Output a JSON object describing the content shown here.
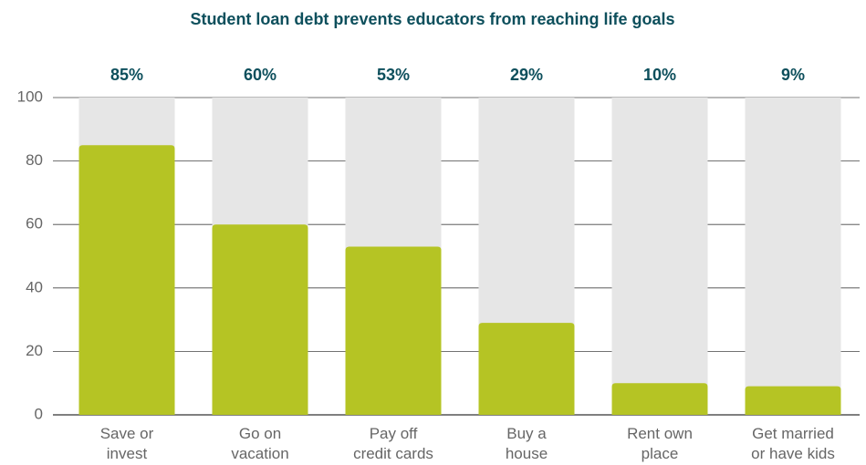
{
  "chart_data": {
    "type": "bar",
    "title": "Student loan debt prevents educators from reaching life goals",
    "categories": [
      [
        "Save or",
        "invest"
      ],
      [
        "Go on",
        "vacation"
      ],
      [
        "Pay off",
        "credit cards"
      ],
      [
        "Buy a",
        "house"
      ],
      [
        "Rent own",
        "place"
      ],
      [
        "Get married",
        "or have kids"
      ]
    ],
    "values": [
      85,
      60,
      53,
      29,
      10,
      9
    ],
    "value_labels": [
      "85%",
      "60%",
      "53%",
      "29%",
      "10%",
      "9%"
    ],
    "color": "#b5c424",
    "ylim": [
      0,
      100
    ],
    "yticks": [
      0,
      20,
      40,
      60,
      80,
      100
    ],
    "grid": true
  }
}
